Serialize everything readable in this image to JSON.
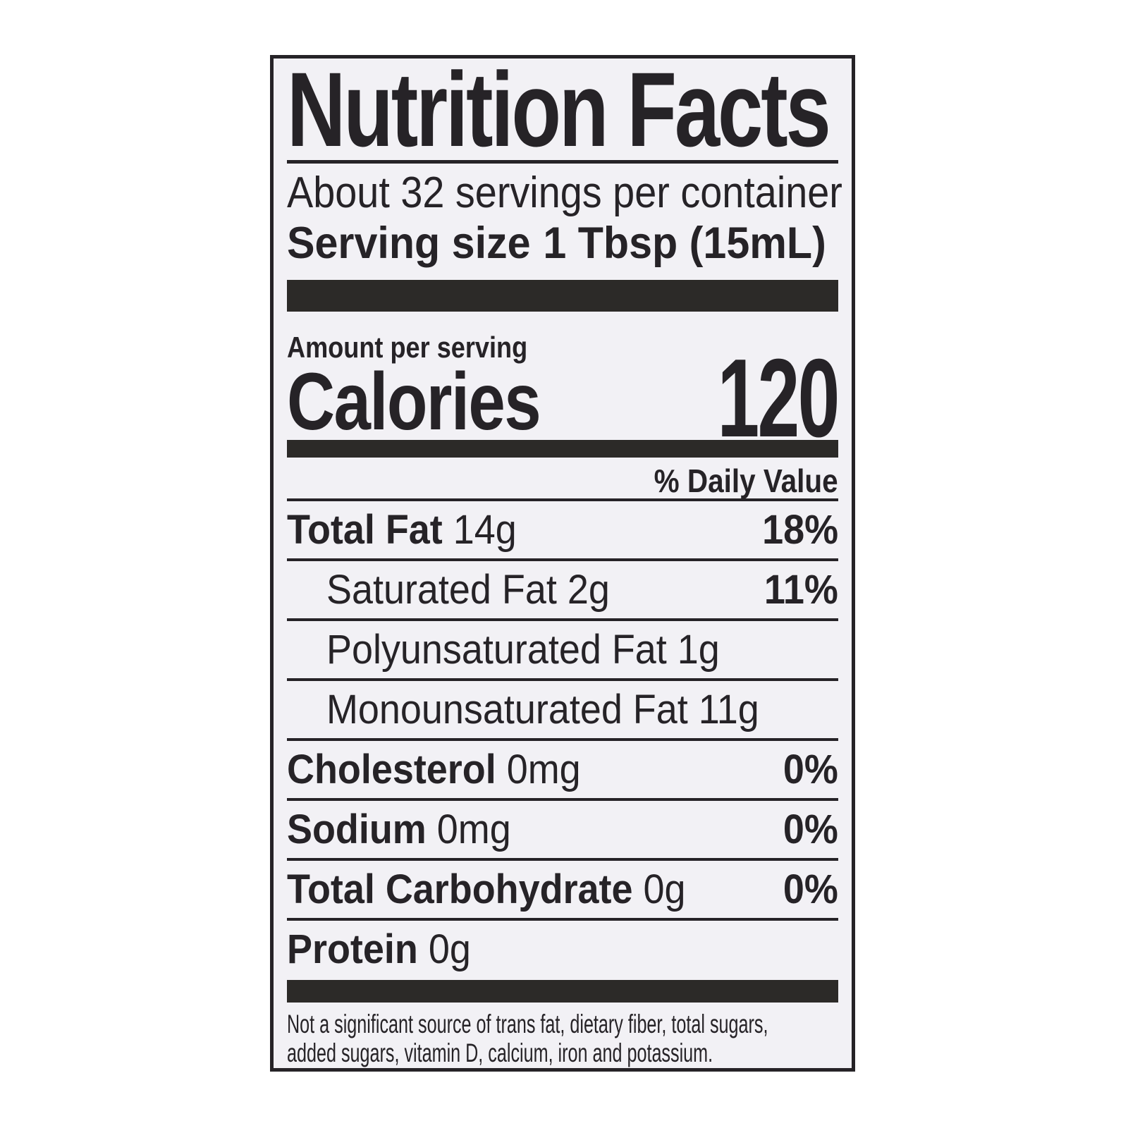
{
  "label": {
    "title": "Nutrition Facts",
    "servings_per_container": "About 32 servings per container",
    "serving_size_label": "Serving size",
    "serving_size_value": "1 Tbsp (15mL)",
    "amount_per_serving": "Amount per serving",
    "calories_label": "Calories",
    "calories_value": "120",
    "daily_value_header": "% Daily Value",
    "rows": [
      {
        "name": "Total Fat",
        "amount": "14g",
        "dv": "18%",
        "bold": true,
        "indent": false
      },
      {
        "name": "Saturated Fat",
        "amount": "2g",
        "dv": "11%",
        "bold": false,
        "indent": true
      },
      {
        "name": "Polyunsaturated Fat",
        "amount": "1g",
        "dv": "",
        "bold": false,
        "indent": true
      },
      {
        "name": "Monounsaturated Fat",
        "amount": "11g",
        "dv": "",
        "bold": false,
        "indent": true
      },
      {
        "name": "Cholesterol",
        "amount": "0mg",
        "dv": "0%",
        "bold": true,
        "indent": false
      },
      {
        "name": "Sodium",
        "amount": "0mg",
        "dv": "0%",
        "bold": true,
        "indent": false
      },
      {
        "name": "Total Carbohydrate",
        "amount": "0g",
        "dv": "0%",
        "bold": true,
        "indent": false
      },
      {
        "name": "Protein",
        "amount": "0g",
        "dv": "",
        "bold": true,
        "indent": false
      }
    ],
    "footnote_line1": "Not a significant source of trans fat, dietary fiber, total sugars,",
    "footnote_line2": "added sugars, vitamin D, calcium, iron and potassium."
  },
  "colors": {
    "ink": "#262327",
    "bar": "#2c2a28",
    "label_bg": "#f2f1f5",
    "page_bg": "#ffffff"
  }
}
